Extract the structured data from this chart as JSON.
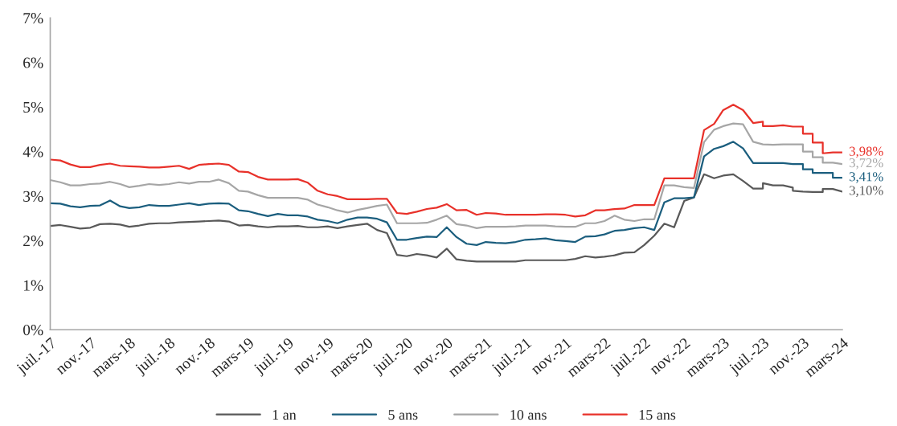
{
  "chart_data": {
    "type": "line",
    "x": [
      "2017-07",
      "2017-08",
      "2017-09",
      "2017-10",
      "2017-11",
      "2017-12",
      "2018-01",
      "2018-02",
      "2018-03",
      "2018-04",
      "2018-05",
      "2018-06",
      "2018-07",
      "2018-08",
      "2018-09",
      "2018-10",
      "2018-11",
      "2018-12",
      "2019-01",
      "2019-02",
      "2019-03",
      "2019-04",
      "2019-05",
      "2019-06",
      "2019-07",
      "2019-08",
      "2019-09",
      "2019-10",
      "2019-11",
      "2019-12",
      "2020-01",
      "2020-02",
      "2020-03",
      "2020-04",
      "2020-05",
      "2020-06",
      "2020-07",
      "2020-08",
      "2020-09",
      "2020-10",
      "2020-11",
      "2020-12",
      "2021-01",
      "2021-02",
      "2021-03",
      "2021-04",
      "2021-05",
      "2021-06",
      "2021-07",
      "2021-08",
      "2021-09",
      "2021-10",
      "2021-11",
      "2021-12",
      "2022-01",
      "2022-02",
      "2022-03",
      "2022-04",
      "2022-05",
      "2022-06",
      "2022-07",
      "2022-08",
      "2022-09",
      "2022-10",
      "2022-11",
      "2022-12",
      "2023-01",
      "2023-02",
      "2023-03",
      "2023-04",
      "2023-05",
      "2023-06",
      "2023-07",
      "2023-07",
      "2023-08",
      "2023-08",
      "2023-09",
      "2023-09",
      "2023-10",
      "2023-10",
      "2023-11",
      "2023-11",
      "2023-12",
      "2023-12",
      "2024-01",
      "2024-01",
      "2024-02",
      "2024-02",
      "2024-03",
      "2024-03"
    ],
    "series": [
      {
        "name": "1 an",
        "color": "#595959",
        "values": [
          2.33,
          2.35,
          2.31,
          2.27,
          2.29,
          2.37,
          2.38,
          2.36,
          2.31,
          2.34,
          2.38,
          2.39,
          2.39,
          2.41,
          2.42,
          2.43,
          2.44,
          2.45,
          2.43,
          2.34,
          2.35,
          2.32,
          2.3,
          2.32,
          2.32,
          2.33,
          2.3,
          2.3,
          2.32,
          2.28,
          2.32,
          2.35,
          2.38,
          2.24,
          2.17,
          1.68,
          1.65,
          1.7,
          1.67,
          1.62,
          1.82,
          1.58,
          1.55,
          1.53,
          1.53,
          1.53,
          1.53,
          1.53,
          1.56,
          1.56,
          1.56,
          1.56,
          1.56,
          1.59,
          1.65,
          1.62,
          1.64,
          1.67,
          1.73,
          1.74,
          1.9,
          2.11,
          2.38,
          2.3,
          2.89,
          2.97,
          3.49,
          3.4,
          3.46,
          3.49,
          3.34,
          3.17,
          3.17,
          3.29,
          3.24,
          3.24,
          3.24,
          3.24,
          3.19,
          3.12,
          3.1,
          3.1,
          3.09,
          3.09,
          3.09,
          3.16,
          3.16,
          3.16,
          3.1,
          3.1
        ]
      },
      {
        "name": "5 ans",
        "color": "#1b5e7e",
        "values": [
          2.84,
          2.83,
          2.77,
          2.75,
          2.78,
          2.79,
          2.9,
          2.77,
          2.73,
          2.75,
          2.8,
          2.78,
          2.78,
          2.81,
          2.84,
          2.8,
          2.83,
          2.84,
          2.83,
          2.68,
          2.66,
          2.6,
          2.55,
          2.6,
          2.57,
          2.57,
          2.54,
          2.47,
          2.44,
          2.39,
          2.47,
          2.52,
          2.52,
          2.49,
          2.41,
          2.02,
          2.02,
          2.06,
          2.09,
          2.08,
          2.3,
          2.08,
          1.93,
          1.9,
          1.97,
          1.95,
          1.94,
          1.97,
          2.02,
          2.03,
          2.05,
          2.01,
          1.99,
          1.97,
          2.09,
          2.1,
          2.14,
          2.22,
          2.24,
          2.28,
          2.3,
          2.24,
          2.86,
          2.95,
          2.95,
          2.97,
          3.89,
          4.06,
          4.12,
          4.22,
          4.07,
          3.74,
          3.74,
          3.74,
          3.74,
          3.74,
          3.74,
          3.74,
          3.72,
          3.72,
          3.72,
          3.6,
          3.6,
          3.52,
          3.52,
          3.52,
          3.52,
          3.41,
          3.41,
          3.41
        ]
      },
      {
        "name": "10 ans",
        "color": "#a6a6a6",
        "values": [
          3.36,
          3.31,
          3.24,
          3.24,
          3.27,
          3.28,
          3.32,
          3.27,
          3.2,
          3.23,
          3.27,
          3.25,
          3.27,
          3.31,
          3.28,
          3.32,
          3.32,
          3.37,
          3.29,
          3.12,
          3.1,
          3.02,
          2.96,
          2.96,
          2.96,
          2.96,
          2.92,
          2.81,
          2.75,
          2.68,
          2.63,
          2.69,
          2.73,
          2.78,
          2.81,
          2.39,
          2.39,
          2.39,
          2.4,
          2.47,
          2.56,
          2.37,
          2.34,
          2.28,
          2.31,
          2.31,
          2.31,
          2.32,
          2.34,
          2.34,
          2.34,
          2.32,
          2.31,
          2.31,
          2.39,
          2.39,
          2.44,
          2.56,
          2.47,
          2.44,
          2.48,
          2.48,
          3.24,
          3.24,
          3.2,
          3.18,
          4.21,
          4.49,
          4.57,
          4.63,
          4.61,
          4.22,
          4.16,
          4.16,
          4.15,
          4.15,
          4.16,
          4.16,
          4.16,
          4.16,
          4.16,
          4.0,
          4.0,
          3.87,
          3.87,
          3.75,
          3.75,
          3.75,
          3.72,
          3.72
        ]
      },
      {
        "name": "15 ans",
        "color": "#e8312a",
        "values": [
          3.82,
          3.8,
          3.71,
          3.65,
          3.65,
          3.7,
          3.73,
          3.68,
          3.67,
          3.66,
          3.64,
          3.64,
          3.66,
          3.68,
          3.61,
          3.7,
          3.72,
          3.73,
          3.7,
          3.55,
          3.54,
          3.43,
          3.37,
          3.37,
          3.37,
          3.38,
          3.3,
          3.12,
          3.04,
          3.0,
          2.93,
          2.93,
          2.93,
          2.94,
          2.94,
          2.62,
          2.6,
          2.65,
          2.71,
          2.74,
          2.82,
          2.68,
          2.69,
          2.58,
          2.62,
          2.61,
          2.58,
          2.58,
          2.58,
          2.58,
          2.59,
          2.59,
          2.58,
          2.54,
          2.57,
          2.68,
          2.68,
          2.71,
          2.72,
          2.8,
          2.8,
          2.8,
          3.4,
          3.4,
          3.4,
          3.4,
          4.48,
          4.62,
          4.93,
          5.05,
          4.93,
          4.64,
          4.67,
          4.57,
          4.57,
          4.57,
          4.59,
          4.59,
          4.56,
          4.56,
          4.56,
          4.4,
          4.4,
          4.2,
          4.2,
          3.96,
          3.98,
          3.98,
          3.98,
          3.98
        ]
      }
    ],
    "annotations": [
      {
        "text": "3,10%",
        "x": "2024-03",
        "y": 3.1
      },
      {
        "text": "3,41%",
        "x": "2024-03",
        "y": 3.41
      },
      {
        "text": "3,72%",
        "x": "2024-03",
        "y": 3.72
      },
      {
        "text": "3,98%",
        "x": "2024-03",
        "y": 3.98
      }
    ],
    "xlim": [
      "2017-07",
      "2024-03"
    ],
    "xticks": [
      {
        "value": "2017-07",
        "label": "juil.-17"
      },
      {
        "value": "2017-11",
        "label": "nov.-17"
      },
      {
        "value": "2018-03",
        "label": "mars-18"
      },
      {
        "value": "2018-07",
        "label": "juil.-18"
      },
      {
        "value": "2018-11",
        "label": "nov.-18"
      },
      {
        "value": "2019-03",
        "label": "mars-19"
      },
      {
        "value": "2019-07",
        "label": "juil.-19"
      },
      {
        "value": "2019-11",
        "label": "nov.-19"
      },
      {
        "value": "2020-03",
        "label": "mars-20"
      },
      {
        "value": "2020-07",
        "label": "juil.-20"
      },
      {
        "value": "2020-11",
        "label": "nov.-20"
      },
      {
        "value": "2021-03",
        "label": "mars-21"
      },
      {
        "value": "2021-07",
        "label": "juil.-21"
      },
      {
        "value": "2021-11",
        "label": "nov.-21"
      },
      {
        "value": "2022-03",
        "label": "mars-22"
      },
      {
        "value": "2022-07",
        "label": "juil.-22"
      },
      {
        "value": "2022-11",
        "label": "nov.-22"
      },
      {
        "value": "2023-03",
        "label": "mars-23"
      },
      {
        "value": "2023-07",
        "label": "juil.-23"
      },
      {
        "value": "2023-11",
        "label": "nov.-23"
      },
      {
        "value": "2024-03",
        "label": "mars-24"
      }
    ],
    "ylim": [
      0,
      7
    ],
    "yticks": [
      {
        "value": 0,
        "label": "0%"
      },
      {
        "value": 1,
        "label": "1%"
      },
      {
        "value": 2,
        "label": "2%"
      },
      {
        "value": 3,
        "label": "3%"
      },
      {
        "value": 4,
        "label": "4%"
      },
      {
        "value": 5,
        "label": "5%"
      },
      {
        "value": 6,
        "label": "6%"
      },
      {
        "value": 7,
        "label": "7%"
      }
    ],
    "grid": false,
    "legend": "bottom",
    "marker": "none",
    "line_style": "solid"
  }
}
